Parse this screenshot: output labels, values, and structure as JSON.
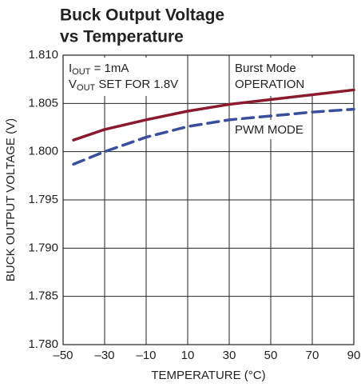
{
  "chart_data": {
    "type": "line",
    "title": [
      "Buck Output Voltage",
      "vs Temperature"
    ],
    "xlabel": "TEMPERATURE (°C)",
    "ylabel": "BUCK OUTPUT VOLTAGE (V)",
    "x": [
      -45,
      -30,
      -10,
      10,
      30,
      50,
      70,
      90
    ],
    "series": [
      {
        "color": "#8b1a2e",
        "dash": false,
        "values": [
          1.8012,
          1.8023,
          1.8033,
          1.8042,
          1.8049,
          1.8054,
          1.8059,
          1.8064
        ]
      },
      {
        "color": "#3a4f9c",
        "dash": true,
        "values": [
          1.7987,
          1.8,
          1.8015,
          1.8026,
          1.8033,
          1.8037,
          1.8041,
          1.8044
        ]
      }
    ],
    "xlim": [
      -50,
      90
    ],
    "xticks": [
      {
        "value": -50,
        "label": "–50"
      },
      {
        "value": -30,
        "label": "–30"
      },
      {
        "value": -10,
        "label": "–10"
      },
      10,
      30,
      50,
      70,
      90
    ],
    "ylim": [
      1.78,
      1.81
    ],
    "yticks": [
      {
        "value": 1.78,
        "label": "1.780"
      },
      1.785,
      {
        "value": 1.79,
        "label": "1.790"
      },
      1.795,
      {
        "value": 1.8,
        "label": "1.800"
      },
      1.805,
      {
        "value": 1.81,
        "label": "1.810"
      }
    ],
    "grid": true,
    "annotations": {
      "iout": {
        "main": "I",
        "sub": "OUT",
        "rest": " = 1mA"
      },
      "vout": {
        "main": "V",
        "sub": "OUT",
        "rest": " SET FOR 1.8V"
      },
      "burst": [
        "Burst Mode",
        "OPERATION"
      ],
      "pwm": "PWM MODE"
    }
  }
}
